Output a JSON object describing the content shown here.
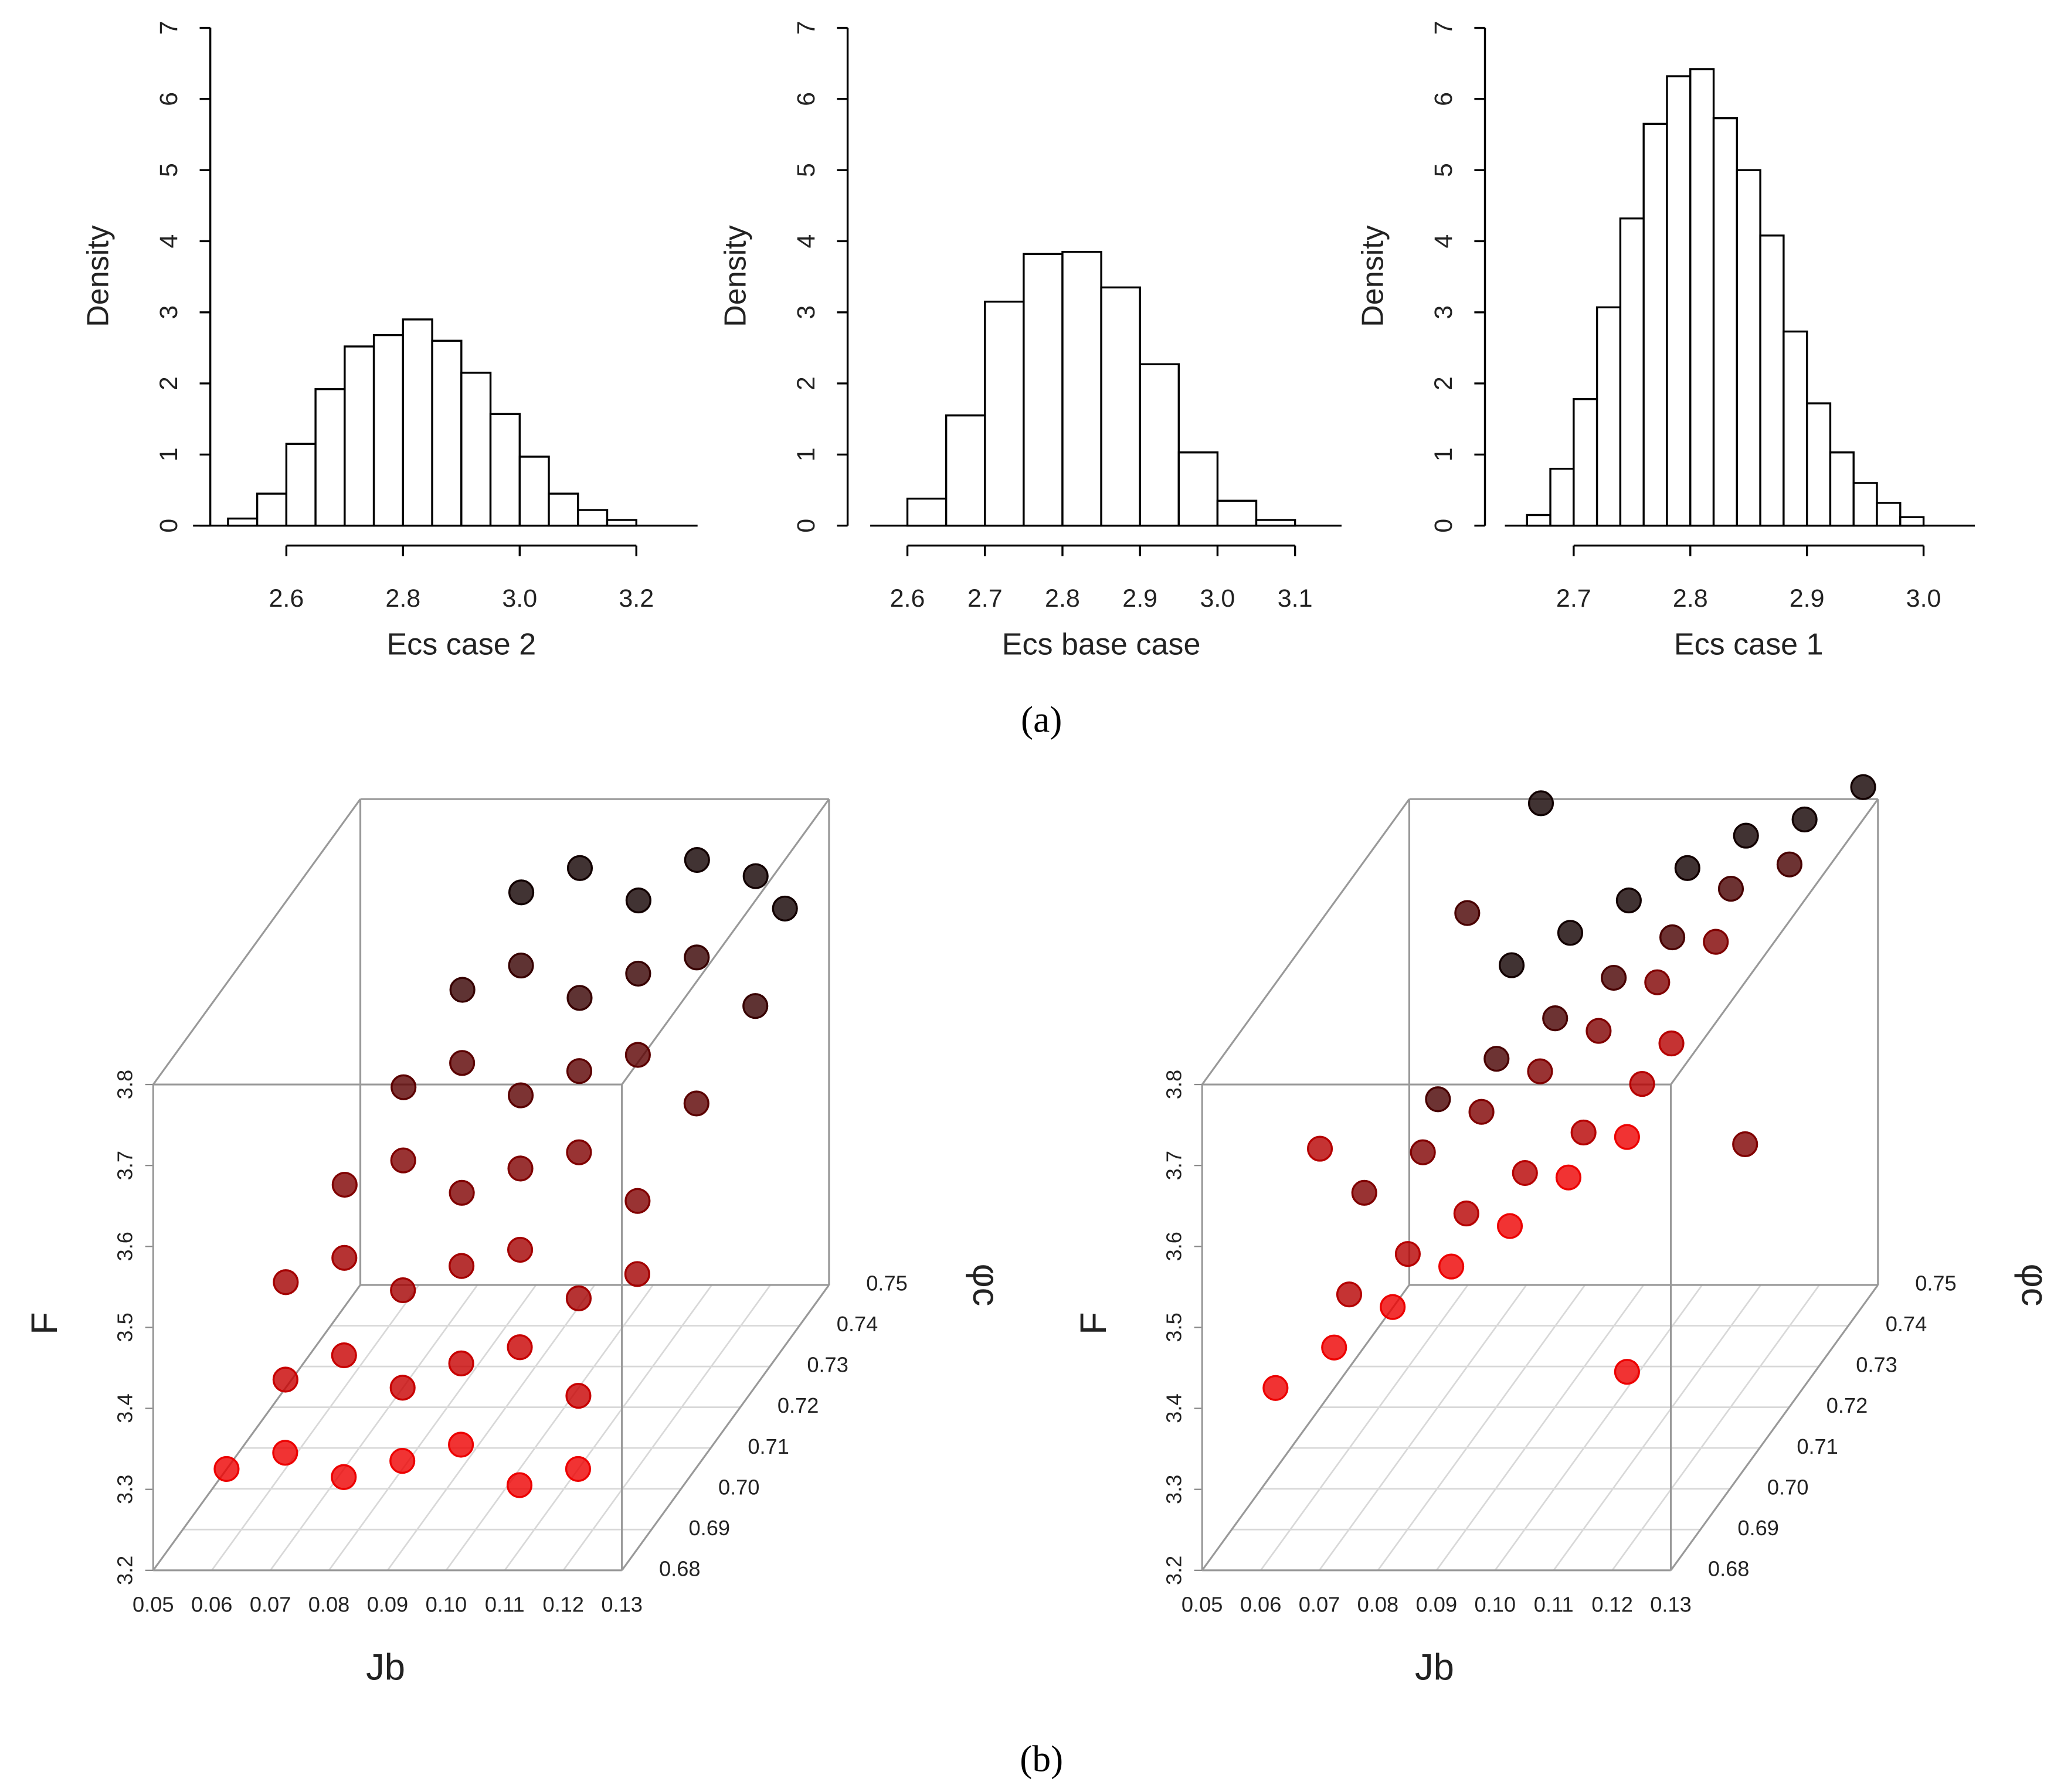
{
  "chart_data": [
    {
      "type": "histogram",
      "xlabel": "Ecs case 2",
      "ylabel": "Density",
      "color": "#ffffff",
      "edgecolor": "#000000",
      "bins": [
        2.5,
        2.55,
        2.6,
        2.65,
        2.7,
        2.75,
        2.8,
        2.85,
        2.9,
        2.95,
        3.0,
        3.05,
        3.1,
        3.15,
        3.2
      ],
      "values": [
        0.1,
        0.45,
        1.15,
        1.92,
        2.52,
        2.68,
        2.9,
        2.6,
        2.15,
        1.57,
        0.97,
        0.45,
        0.22,
        0.08
      ],
      "xlim": [
        2.44,
        3.305
      ],
      "ylim": [
        0,
        7
      ],
      "xticks": [
        2.6,
        2.8,
        {
          "value": 3,
          "label": "3.0"
        },
        3.2
      ],
      "yticks": [
        0,
        1,
        2,
        3,
        4,
        5,
        6,
        7
      ]
    },
    {
      "type": "histogram",
      "xlabel": "Ecs base case",
      "ylabel": "Density",
      "color": "#ffffff",
      "edgecolor": "#000000",
      "bins": [
        2.6,
        2.65,
        2.7,
        2.75,
        2.8,
        2.85,
        2.9,
        2.95,
        3.0,
        3.05,
        3.1
      ],
      "values": [
        0.38,
        1.55,
        3.15,
        3.82,
        3.85,
        3.35,
        2.27,
        1.03,
        0.35,
        0.08
      ],
      "xlim": [
        2.552,
        3.16
      ],
      "ylim": [
        0,
        7
      ],
      "xticks": [
        2.6,
        2.7,
        2.8,
        2.9,
        {
          "value": 3,
          "label": "3.0"
        },
        3.1
      ],
      "yticks": [
        0,
        1,
        2,
        3,
        4,
        5,
        6,
        7
      ]
    },
    {
      "type": "histogram",
      "xlabel": "Ecs case 1",
      "ylabel": "Density",
      "color": "#ffffff",
      "edgecolor": "#000000",
      "bins": [
        2.66,
        2.68,
        2.7,
        2.72,
        2.74,
        2.76,
        2.78,
        2.8,
        2.82,
        2.84,
        2.86,
        2.88,
        2.9,
        2.92,
        2.94,
        2.96,
        2.98,
        3.0
      ],
      "values": [
        0.15,
        0.8,
        1.78,
        3.07,
        4.32,
        5.65,
        6.32,
        6.42,
        5.73,
        5.0,
        4.08,
        2.73,
        1.72,
        1.03,
        0.6,
        0.32,
        0.12
      ],
      "xlim": [
        2.641,
        3.044
      ],
      "ylim": [
        0,
        7
      ],
      "xticks": [
        2.7,
        2.8,
        2.9,
        {
          "value": 3,
          "label": "3.0"
        }
      ],
      "yticks": [
        0,
        1,
        2,
        3,
        4,
        5,
        6,
        7
      ]
    },
    {
      "type": "scatter3d",
      "xlabel": "Jb",
      "ylabel": "φc",
      "zlabel": "F",
      "colors": [
        "#ff0000",
        "#000000"
      ],
      "xlim": [
        0.05,
        0.13
      ],
      "ylim": [
        0.68,
        0.75
      ],
      "zlim": [
        3.2,
        3.8
      ],
      "xticks": [
        0.05,
        0.06,
        0.07,
        0.08,
        0.09,
        {
          "value": 0.1,
          "label": "0.10"
        },
        0.11,
        0.12,
        0.13
      ],
      "yticks": [
        0.68,
        0.69,
        {
          "value": 0.7,
          "label": "0.70"
        },
        0.71,
        0.72,
        0.73,
        0.74,
        0.75
      ],
      "zticks": [
        3.2,
        3.3,
        3.4,
        3.5,
        3.6,
        3.7,
        3.8
      ],
      "x": [
        0.08,
        0.09,
        0.1,
        0.11,
        0.12,
        0.125,
        0.075,
        0.085,
        0.095,
        0.105,
        0.115,
        0.125,
        0.07,
        0.08,
        0.09,
        0.1,
        0.11,
        0.12,
        0.065,
        0.075,
        0.085,
        0.095,
        0.105,
        0.115,
        0.06,
        0.07,
        0.08,
        0.09,
        0.1,
        0.11,
        0.12,
        0.065,
        0.075,
        0.085,
        0.095,
        0.105,
        0.115,
        0.06,
        0.07,
        0.08,
        0.09,
        0.1,
        0.11,
        0.12
      ],
      "y": [
        0.745,
        0.745,
        0.745,
        0.745,
        0.745,
        0.745,
        0.735,
        0.735,
        0.735,
        0.735,
        0.735,
        0.735,
        0.725,
        0.725,
        0.725,
        0.725,
        0.725,
        0.725,
        0.715,
        0.715,
        0.715,
        0.715,
        0.715,
        0.715,
        0.705,
        0.705,
        0.705,
        0.705,
        0.705,
        0.705,
        0.705,
        0.695,
        0.695,
        0.695,
        0.695,
        0.695,
        0.695,
        0.685,
        0.685,
        0.685,
        0.685,
        0.685,
        0.685,
        0.685
      ],
      "z": [
        3.71,
        3.74,
        3.7,
        3.75,
        3.73,
        3.69,
        3.64,
        3.67,
        3.63,
        3.66,
        3.68,
        3.62,
        3.57,
        3.6,
        3.56,
        3.59,
        3.61,
        3.55,
        3.5,
        3.53,
        3.49,
        3.52,
        3.54,
        3.48,
        3.43,
        3.46,
        3.42,
        3.45,
        3.47,
        3.41,
        3.44,
        3.36,
        3.39,
        3.35,
        3.38,
        3.4,
        3.34,
        3.3,
        3.32,
        3.29,
        3.31,
        3.33,
        3.28,
        3.3
      ]
    },
    {
      "type": "scatter3d",
      "xlabel": "Jb",
      "ylabel": "φc",
      "zlabel": "F",
      "colors": [
        "#ff0000",
        "#000000"
      ],
      "xlim": [
        0.05,
        0.13
      ],
      "ylim": [
        0.68,
        0.75
      ],
      "zlim": [
        3.2,
        3.8
      ],
      "xticks": [
        0.05,
        0.06,
        0.07,
        0.08,
        0.09,
        {
          "value": 0.1,
          "label": "0.10"
        },
        0.11,
        0.12,
        0.13
      ],
      "yticks": [
        0.68,
        0.69,
        {
          "value": 0.7,
          "label": "0.70"
        },
        0.71,
        0.72,
        0.73,
        0.74,
        0.75
      ],
      "zticks": [
        3.2,
        3.3,
        3.4,
        3.5,
        3.6,
        3.7,
        3.8
      ],
      "x": [
        0.07,
        0.09,
        0.11,
        0.13,
        0.08,
        0.1,
        0.12,
        0.075,
        0.065,
        0.085,
        0.105,
        0.125,
        0.075,
        0.095,
        0.115,
        0.07,
        0.06,
        0.08,
        0.1,
        0.12,
        0.07,
        0.09,
        0.11,
        0.125,
        0.065,
        0.085,
        0.105,
        0.12,
        0.075,
        0.095,
        0.115,
        0.06,
        0.06,
        0.08,
        0.1,
        0.12,
        0.07,
        0.09,
        0.11,
        0.12
      ],
      "y": [
        0.745,
        0.745,
        0.745,
        0.745,
        0.745,
        0.745,
        0.745,
        0.745,
        0.73,
        0.73,
        0.73,
        0.73,
        0.73,
        0.73,
        0.73,
        0.73,
        0.715,
        0.715,
        0.715,
        0.715,
        0.715,
        0.715,
        0.715,
        0.715,
        0.7,
        0.7,
        0.7,
        0.7,
        0.7,
        0.7,
        0.7,
        0.7,
        0.685,
        0.685,
        0.685,
        0.685,
        0.685,
        0.685,
        0.685,
        0.685
      ],
      "z": [
        3.62,
        3.7,
        3.78,
        3.84,
        3.66,
        3.74,
        3.8,
        3.82,
        3.53,
        3.63,
        3.73,
        3.82,
        3.58,
        3.68,
        3.79,
        3.76,
        3.49,
        3.59,
        3.69,
        3.8,
        3.54,
        3.64,
        3.75,
        3.55,
        3.44,
        3.54,
        3.64,
        3.75,
        3.49,
        3.59,
        3.7,
        3.62,
        3.4,
        3.5,
        3.6,
        3.71,
        3.45,
        3.55,
        3.66,
        3.42
      ]
    }
  ],
  "captions": [
    "(a)",
    "(b)"
  ]
}
